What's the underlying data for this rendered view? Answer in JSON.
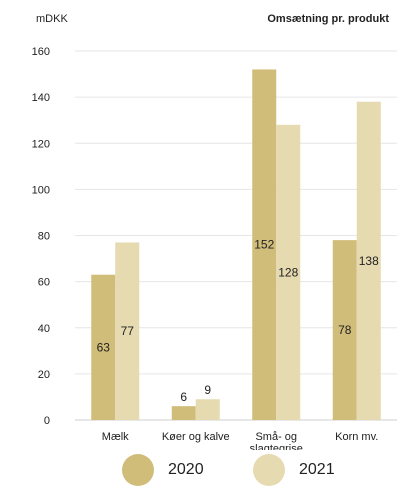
{
  "chart_data": {
    "type": "bar",
    "title": "Omsætning pr. produkt",
    "ylabel": "mDKK",
    "xlabel": "",
    "ylim": [
      0,
      160
    ],
    "yticks": [
      0,
      20,
      40,
      60,
      80,
      100,
      120,
      140,
      160
    ],
    "grid": true,
    "legend_position": "bottom",
    "categories": [
      [
        "Mælk"
      ],
      [
        "Køer og kalve"
      ],
      [
        "Små- og",
        "slagtegrise"
      ],
      [
        "Korn mv."
      ]
    ],
    "series": [
      {
        "name": "2020",
        "color": "#d1bd7a",
        "values": [
          63,
          6,
          152,
          78
        ]
      },
      {
        "name": "2021",
        "color": "#e6dab0",
        "values": [
          77,
          9,
          128,
          138
        ]
      }
    ]
  }
}
